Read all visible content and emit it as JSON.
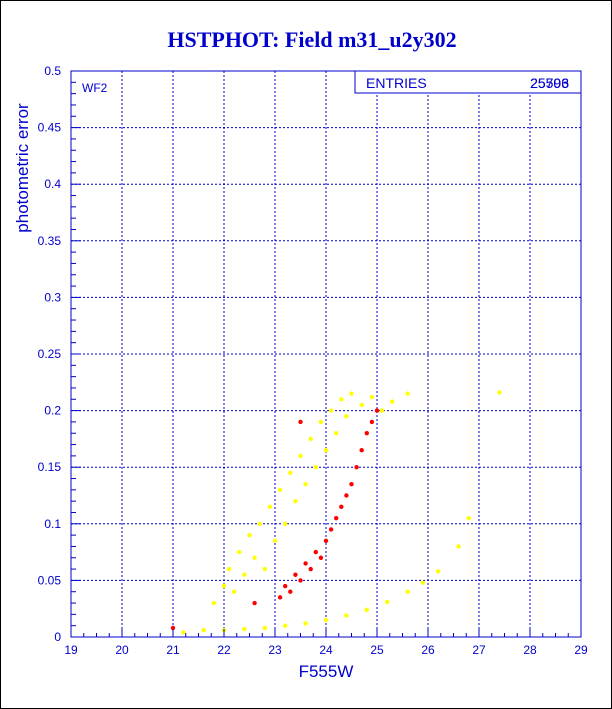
{
  "chart_data": {
    "type": "scatter",
    "title": "HSTPHOT: Field m31_u2y302",
    "xlabel": "F555W",
    "ylabel": "photometric error",
    "xlim": [
      19,
      29
    ],
    "ylim": [
      0,
      0.5
    ],
    "x_ticks": [
      "19",
      "20",
      "21",
      "22",
      "23",
      "24",
      "25",
      "26",
      "27",
      "28",
      "29"
    ],
    "y_ticks": [
      "0",
      "0.05",
      "0.1",
      "0.15",
      "0.2",
      "0.25",
      "0.3",
      "0.35",
      "0.4",
      "0.45",
      "0.5"
    ],
    "grid": true,
    "panel_label": "WF2",
    "stats_box": {
      "label": "ENTRIES",
      "value": "25706",
      "value_overstrike": "25593"
    },
    "series": [
      {
        "color": "#ffff00",
        "points": [
          [
            21.2,
            0.004
          ],
          [
            21.6,
            0.006
          ],
          [
            22.0,
            0.006
          ],
          [
            22.4,
            0.007
          ],
          [
            22.8,
            0.008
          ],
          [
            23.2,
            0.01
          ],
          [
            23.6,
            0.012
          ],
          [
            24.0,
            0.015
          ],
          [
            24.4,
            0.019
          ],
          [
            24.8,
            0.024
          ],
          [
            25.2,
            0.031
          ],
          [
            25.6,
            0.04
          ],
          [
            25.9,
            0.048
          ],
          [
            26.2,
            0.058
          ],
          [
            26.6,
            0.08
          ],
          [
            26.8,
            0.105
          ],
          [
            27.4,
            0.216
          ],
          [
            21.8,
            0.03
          ],
          [
            22.0,
            0.045
          ],
          [
            22.1,
            0.06
          ],
          [
            22.2,
            0.04
          ],
          [
            22.3,
            0.075
          ],
          [
            22.4,
            0.055
          ],
          [
            22.5,
            0.09
          ],
          [
            22.6,
            0.07
          ],
          [
            22.7,
            0.1
          ],
          [
            22.8,
            0.06
          ],
          [
            22.9,
            0.115
          ],
          [
            23.0,
            0.085
          ],
          [
            23.1,
            0.13
          ],
          [
            23.2,
            0.1
          ],
          [
            23.3,
            0.145
          ],
          [
            23.4,
            0.12
          ],
          [
            23.5,
            0.16
          ],
          [
            23.6,
            0.135
          ],
          [
            23.7,
            0.175
          ],
          [
            23.8,
            0.15
          ],
          [
            23.9,
            0.19
          ],
          [
            24.0,
            0.165
          ],
          [
            24.1,
            0.2
          ],
          [
            24.2,
            0.18
          ],
          [
            24.3,
            0.21
          ],
          [
            24.4,
            0.195
          ],
          [
            24.5,
            0.215
          ],
          [
            24.7,
            0.205
          ],
          [
            24.9,
            0.212
          ],
          [
            25.1,
            0.2
          ],
          [
            25.3,
            0.208
          ],
          [
            25.6,
            0.215
          ]
        ]
      },
      {
        "color": "#ff0000",
        "points": [
          [
            23.1,
            0.035
          ],
          [
            23.2,
            0.045
          ],
          [
            23.3,
            0.04
          ],
          [
            23.4,
            0.055
          ],
          [
            23.5,
            0.05
          ],
          [
            23.6,
            0.065
          ],
          [
            23.7,
            0.06
          ],
          [
            23.8,
            0.075
          ],
          [
            23.9,
            0.07
          ],
          [
            24.0,
            0.085
          ],
          [
            24.1,
            0.095
          ],
          [
            24.2,
            0.105
          ],
          [
            24.3,
            0.115
          ],
          [
            24.4,
            0.125
          ],
          [
            24.5,
            0.135
          ],
          [
            24.6,
            0.15
          ],
          [
            24.7,
            0.165
          ],
          [
            24.8,
            0.18
          ],
          [
            24.9,
            0.19
          ],
          [
            25.0,
            0.2
          ],
          [
            21.0,
            0.008
          ],
          [
            22.6,
            0.03
          ],
          [
            23.5,
            0.19
          ]
        ]
      }
    ]
  }
}
